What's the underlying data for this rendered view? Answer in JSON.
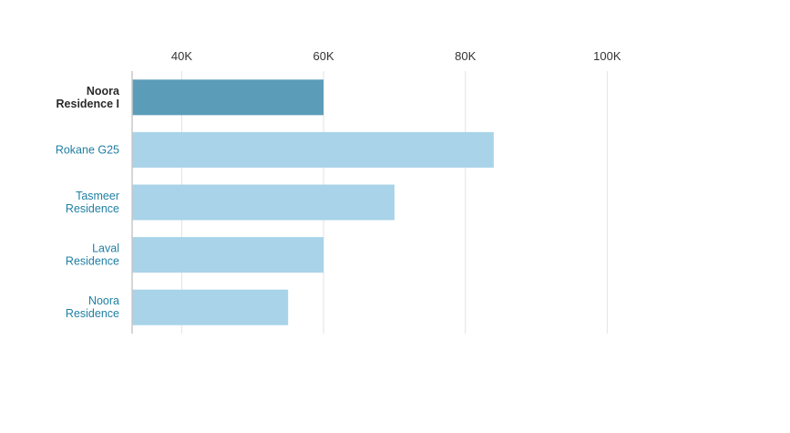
{
  "chart_data": {
    "type": "bar",
    "orientation": "horizontal",
    "title": "",
    "xlabel": "",
    "ylabel": "",
    "xlim": [
      33000,
      120000
    ],
    "x_ticks": [
      40000,
      60000,
      80000,
      100000
    ],
    "x_tick_labels": [
      "40K",
      "60K",
      "80K",
      "100K"
    ],
    "x_axis_position": "top",
    "grid": true,
    "legend": "none",
    "categories": [
      {
        "label": [
          "Noora",
          "Residence I"
        ],
        "highlight": true
      },
      {
        "label": [
          "Rokane G25"
        ],
        "highlight": false
      },
      {
        "label": [
          "Tasmeer",
          "Residence"
        ],
        "highlight": false
      },
      {
        "label": [
          "Laval",
          "Residence"
        ],
        "highlight": false
      },
      {
        "label": [
          "Noora",
          "Residence"
        ],
        "highlight": false
      }
    ],
    "values": [
      60000,
      84000,
      70000,
      60000,
      55000
    ],
    "colors": {
      "highlight_bar": "#5b9db8",
      "bar": "#a8d3e8",
      "highlight_label": "#2a2a2a",
      "label": "#1f7fa3",
      "grid": "#e3e3e3",
      "axis": "#c8c8c8",
      "tick_text": "#333333"
    }
  }
}
